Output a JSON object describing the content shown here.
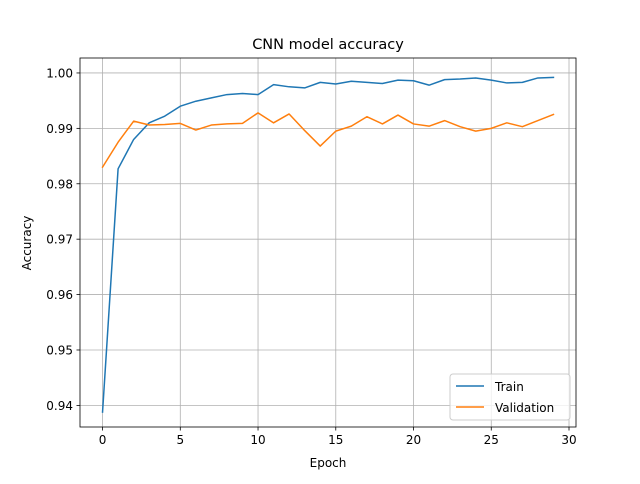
{
  "chart_data": {
    "type": "line",
    "title": "CNN model accuracy",
    "xlabel": "Epoch",
    "ylabel": "Accuracy",
    "xlim": [
      -1.45,
      30.45
    ],
    "ylim": [
      0.9361,
      1.0027
    ],
    "x_ticks": [
      0,
      5,
      10,
      15,
      20,
      25,
      30
    ],
    "y_ticks": [
      0.94,
      0.95,
      0.96,
      0.97,
      0.98,
      0.99,
      1.0
    ],
    "y_tick_labels": [
      "0.94",
      "0.95",
      "0.96",
      "0.97",
      "0.98",
      "0.99",
      "1.00"
    ],
    "grid": true,
    "legend_position": "lower-right",
    "x": [
      0,
      1,
      2,
      3,
      4,
      5,
      6,
      7,
      8,
      9,
      10,
      11,
      12,
      13,
      14,
      15,
      16,
      17,
      18,
      19,
      20,
      21,
      22,
      23,
      24,
      25,
      26,
      27,
      28,
      29
    ],
    "series": [
      {
        "name": "Train",
        "color": "#1f77b4",
        "values": [
          0.9388,
          0.9827,
          0.988,
          0.991,
          0.9922,
          0.994,
          0.9949,
          0.9955,
          0.9961,
          0.9963,
          0.9961,
          0.9979,
          0.9975,
          0.9973,
          0.9983,
          0.998,
          0.9985,
          0.9983,
          0.9981,
          0.9987,
          0.9986,
          0.9978,
          0.9988,
          0.9989,
          0.9991,
          0.9987,
          0.9982,
          0.9983,
          0.9991,
          0.9992
        ]
      },
      {
        "name": "Validation",
        "color": "#ff7f0e",
        "values": [
          0.983,
          0.9875,
          0.9913,
          0.9906,
          0.9907,
          0.9909,
          0.9897,
          0.9906,
          0.9908,
          0.9909,
          0.9928,
          0.991,
          0.9926,
          0.9896,
          0.9868,
          0.9895,
          0.9904,
          0.9921,
          0.9908,
          0.9924,
          0.9908,
          0.9904,
          0.9914,
          0.9903,
          0.9895,
          0.99,
          0.991,
          0.9903,
          0.9914,
          0.9925
        ]
      }
    ]
  }
}
